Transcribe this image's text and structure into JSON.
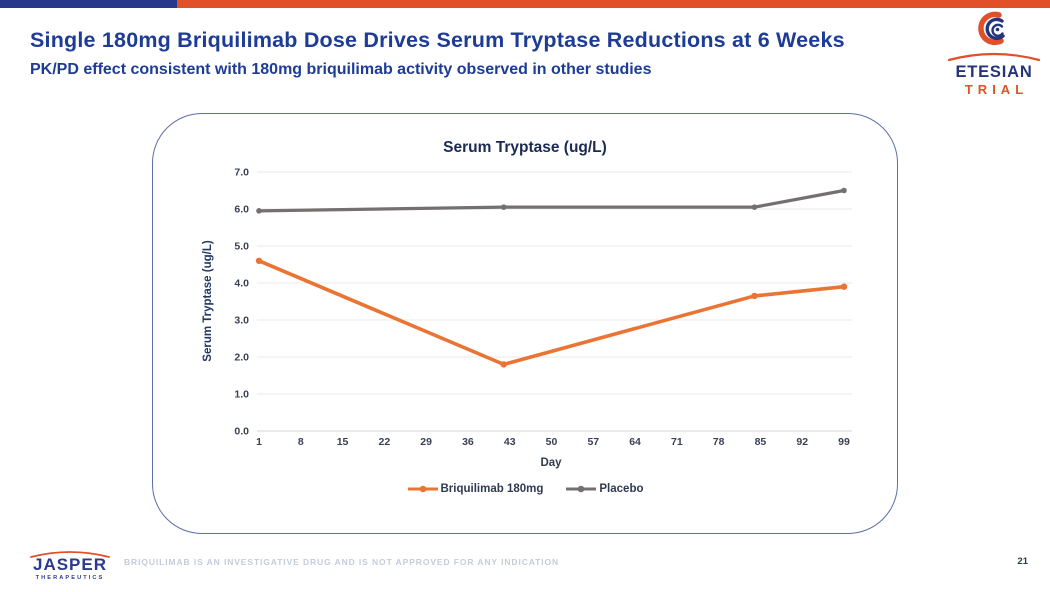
{
  "slide": {
    "title": "Single 180mg Briquilimab Dose Drives Serum Tryptase Reductions at 6 Weeks",
    "subtitle": "PK/PD effect consistent with 180mg briquilimab activity observed in other studies",
    "footer_disclaimer": "BRIQUILIMAB IS AN INVESTIGATIVE DRUG AND IS NOT APPROVED FOR ANY INDICATION",
    "page_number": "21"
  },
  "logos": {
    "etesian": {
      "name": "ETESIAN",
      "sub": "TRIAL"
    },
    "jasper": {
      "name": "JASPER",
      "sub": "THERAPEUTICS"
    }
  },
  "colors": {
    "top_bar_blue": "#25388C",
    "top_bar_orange": "#E2502A",
    "heading_blue": "#1E3C96",
    "chart_navy": "#203864",
    "card_border": "#5B6FA8",
    "briquilimab_orange": "#EA7434",
    "placebo_gray": "#757070",
    "gridline": "#E9E9E9",
    "axis_line": "#D4D4D4",
    "disclaimer_gray": "#C4CBDA"
  },
  "chart_data": {
    "type": "line",
    "title": "Serum Tryptase (ug/L)",
    "xlabel": "Day",
    "ylabel": "Serum Tryptase (ug/L)",
    "xlim": [
      1,
      99
    ],
    "ylim": [
      0,
      7
    ],
    "grid": true,
    "legend_position": "bottom",
    "x_ticks": [
      1,
      8,
      15,
      22,
      29,
      36,
      43,
      50,
      57,
      64,
      71,
      78,
      85,
      92,
      99
    ],
    "y_ticks": [
      7.0,
      6.0,
      5.0,
      4.0,
      3.0,
      2.0,
      1.0,
      0.0
    ],
    "series": [
      {
        "name": "Briquilimab 180mg",
        "color": "#EA7434",
        "x": [
          1,
          42,
          84,
          99
        ],
        "values": [
          4.6,
          1.8,
          3.65,
          3.9
        ]
      },
      {
        "name": "Placebo",
        "color": "#757070",
        "x": [
          1,
          42,
          84,
          99
        ],
        "values": [
          5.95,
          6.05,
          6.05,
          6.5
        ]
      }
    ]
  }
}
